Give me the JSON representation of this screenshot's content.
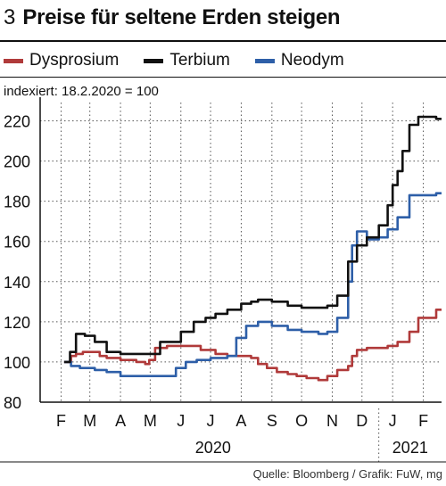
{
  "header": {
    "figure_number": "3",
    "title": "Preise für seltene Erden steigen"
  },
  "note": "indexiert: 18.2.2020 = 100",
  "source": "Quelle: Bloomberg / Grafik: FuW, mg",
  "colors": {
    "Dysprosium": "#b03a3a",
    "Terbium": "#111111",
    "Neodym": "#2e5fa8"
  },
  "chart_data": {
    "type": "line",
    "title": "Preise für seltene Erden steigen",
    "xlabel": "",
    "ylabel": "",
    "ylim": [
      80,
      230
    ],
    "yticks": [
      80,
      100,
      120,
      140,
      160,
      180,
      200,
      220
    ],
    "xticks": [
      "F",
      "M",
      "A",
      "M",
      "J",
      "J",
      "A",
      "S",
      "O",
      "N",
      "D",
      "J",
      "F"
    ],
    "year_labels": [
      "2020",
      "2021"
    ],
    "x_range": [
      "2020-02-01",
      "2021-02-28"
    ],
    "grid": true,
    "legend": "top-left",
    "series": [
      {
        "name": "Dysprosium",
        "x": [
          "2020-02-18",
          "2020-02-25",
          "2020-03-01",
          "2020-03-08",
          "2020-03-16",
          "2020-03-25",
          "2020-04-01",
          "2020-04-15",
          "2020-05-01",
          "2020-05-10",
          "2020-05-14",
          "2020-05-20",
          "2020-06-01",
          "2020-06-15",
          "2020-06-25",
          "2020-07-05",
          "2020-07-20",
          "2020-08-01",
          "2020-08-15",
          "2020-08-25",
          "2020-09-01",
          "2020-09-10",
          "2020-09-20",
          "2020-10-01",
          "2020-10-10",
          "2020-10-20",
          "2020-11-01",
          "2020-11-10",
          "2020-11-20",
          "2020-12-01",
          "2020-12-05",
          "2020-12-10",
          "2020-12-20",
          "2021-01-01",
          "2021-01-10",
          "2021-01-20",
          "2021-02-01",
          "2021-02-10",
          "2021-02-28"
        ],
        "values": [
          100,
          103,
          104,
          105,
          105,
          103,
          102,
          101,
          100,
          99,
          101,
          107,
          108,
          108,
          108,
          106,
          104,
          103,
          103,
          102,
          99,
          97,
          95,
          94,
          93,
          92,
          91,
          93,
          96,
          98,
          103,
          106,
          107,
          107,
          108,
          110,
          115,
          122,
          126
        ]
      },
      {
        "name": "Terbium",
        "x": [
          "2020-02-18",
          "2020-02-24",
          "2020-03-01",
          "2020-03-10",
          "2020-03-20",
          "2020-04-01",
          "2020-04-15",
          "2020-05-01",
          "2020-05-10",
          "2020-05-16",
          "2020-05-25",
          "2020-06-01",
          "2020-06-15",
          "2020-06-20",
          "2020-06-28",
          "2020-07-10",
          "2020-07-20",
          "2020-08-01",
          "2020-08-15",
          "2020-08-25",
          "2020-09-01",
          "2020-09-15",
          "2020-10-01",
          "2020-10-15",
          "2020-11-01",
          "2020-11-10",
          "2020-11-20",
          "2020-12-01",
          "2020-12-10",
          "2020-12-20",
          "2021-01-01",
          "2021-01-10",
          "2021-01-15",
          "2021-01-20",
          "2021-01-25",
          "2021-02-01",
          "2021-02-10",
          "2021-02-28"
        ],
        "values": [
          100,
          105,
          114,
          113,
          110,
          105,
          104,
          104,
          104,
          104,
          110,
          110,
          115,
          115,
          120,
          122,
          124,
          126,
          129,
          130,
          131,
          130,
          128,
          127,
          127,
          128,
          133,
          150,
          158,
          162,
          168,
          178,
          188,
          195,
          205,
          218,
          222,
          221
        ]
      },
      {
        "name": "Neodym",
        "x": [
          "2020-02-18",
          "2020-02-25",
          "2020-03-05",
          "2020-03-20",
          "2020-04-01",
          "2020-04-15",
          "2020-05-01",
          "2020-05-15",
          "2020-06-01",
          "2020-06-10",
          "2020-06-20",
          "2020-07-01",
          "2020-07-15",
          "2020-08-01",
          "2020-08-10",
          "2020-08-20",
          "2020-09-01",
          "2020-09-15",
          "2020-10-01",
          "2020-10-15",
          "2020-11-01",
          "2020-11-10",
          "2020-11-20",
          "2020-12-01",
          "2020-12-05",
          "2020-12-10",
          "2020-12-20",
          "2021-01-01",
          "2021-01-10",
          "2021-01-20",
          "2021-02-01",
          "2021-02-28"
        ],
        "values": [
          100,
          98,
          97,
          96,
          95,
          93,
          93,
          93,
          93,
          97,
          100,
          101,
          102,
          103,
          112,
          118,
          120,
          118,
          116,
          115,
          114,
          115,
          122,
          140,
          158,
          165,
          161,
          162,
          166,
          172,
          183,
          184
        ]
      }
    ]
  }
}
